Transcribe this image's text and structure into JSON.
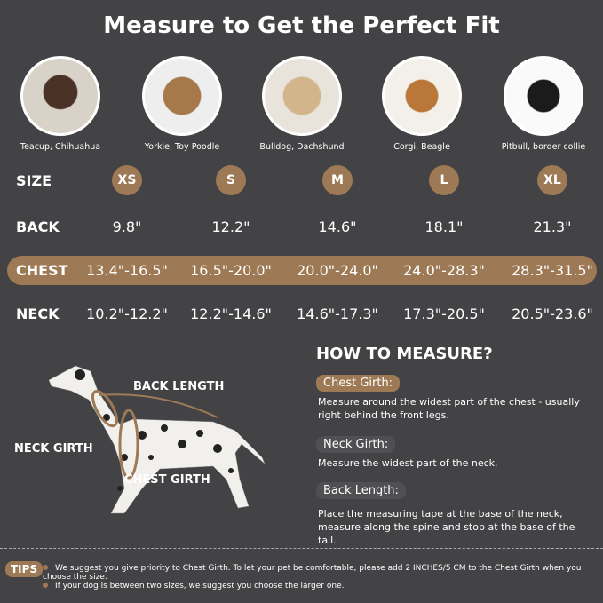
{
  "title": "Measure to Get the Perfect Fit",
  "breeds": [
    "Teacup, Chihuahua",
    "Yorkie, Toy Poodle",
    "Bulldog, Dachshund",
    "Corgi, Beagle",
    "Pitbull, border collie"
  ],
  "table": {
    "size_label": "SIZE",
    "sizes": [
      "XS",
      "S",
      "M",
      "L",
      "XL"
    ],
    "back_label": "BACK",
    "back": [
      "9.8\"",
      "12.2\"",
      "14.6\"",
      "18.1\"",
      "21.3\""
    ],
    "chest_label": "CHEST",
    "chest": [
      "13.4\"-16.5\"",
      "16.5\"-20.0\"",
      "20.0\"-24.0\"",
      "24.0\"-28.3\"",
      "28.3\"-31.5\""
    ],
    "neck_label": "NECK",
    "neck": [
      "10.2\"-12.2\"",
      "12.2\"-14.6\"",
      "14.6\"-17.3\"",
      "17.3\"-20.5\"",
      "20.5\"-23.6\""
    ]
  },
  "diagram": {
    "back_length": "BACK LENGTH",
    "neck_girth": "NECK GIRTH",
    "chest_girth": "CHEST GIRTH"
  },
  "how_to": {
    "title": "HOW TO MEASURE?",
    "chest_title": "Chest Girth:",
    "chest_desc": "Measure around the widest part of the chest - usually right behind the front legs.",
    "neck_title": "Neck Girth:",
    "neck_desc": "Measure the widest part of the neck.",
    "back_title": "Back Length:",
    "back_desc": "Place the measuring tape at the base of the neck, measure along the spine and stop at the base of the tail."
  },
  "tips": {
    "label": "TIPS",
    "items": [
      "We suggest you give priority to Chest Girth. To let your pet be comfortable, please add 2 INCHES/5 CM to the Chest Girth when you choose the size.",
      "If your dog is between two sizes, we suggest you choose the larger one."
    ]
  },
  "colors": {
    "background": "#434345",
    "accent": "#9d7a55"
  }
}
